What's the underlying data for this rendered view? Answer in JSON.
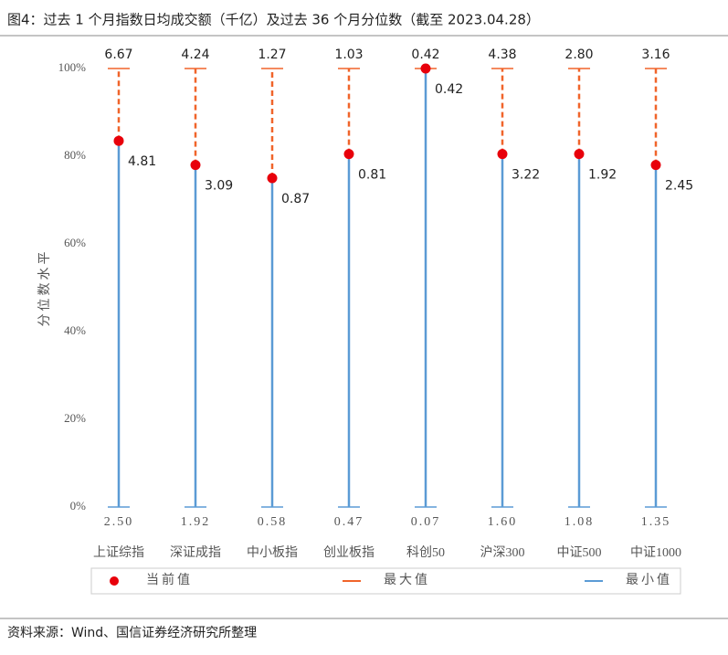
{
  "chart_data": {
    "type": "lollipop",
    "title": "图4：过去 1 个月指数日均成交额（千亿）及过去 36 个月分位数（截至 2023.04.28）",
    "y_label": "分位数水平",
    "source": "资料来源：Wind、国信证券经济研究所整理",
    "categories": [
      "上证综指",
      "深证成指",
      "中小板指",
      "创业板指",
      "科创50",
      "沪深300",
      "中证500",
      "中证1000"
    ],
    "series": [
      {
        "name": "当前值",
        "color": "#e8000b",
        "values": [
          83.5,
          78,
          75,
          80.5,
          100,
          80.5,
          80.5,
          78
        ],
        "amount_labels": [
          "4.81",
          "3.09",
          "0.87",
          "0.81",
          "0.42",
          "3.22",
          "1.92",
          "2.45"
        ]
      },
      {
        "name": "最大值",
        "color": "#f0642a",
        "values": [
          100,
          100,
          100,
          100,
          100,
          100,
          100,
          100
        ],
        "amount_labels": [
          "6.67",
          "4.24",
          "1.27",
          "1.03",
          "0.42",
          "4.38",
          "2.80",
          "3.16"
        ]
      },
      {
        "name": "最小值",
        "color": "#5b9bd5",
        "values": [
          0,
          0,
          0,
          0,
          0,
          0,
          0,
          0
        ],
        "amount_labels": [
          "2.50",
          "1.92",
          "0.58",
          "0.47",
          "0.07",
          "1.60",
          "1.08",
          "1.35"
        ]
      }
    ],
    "ylim": [
      0,
      100
    ],
    "yticks": [
      {
        "value": 0,
        "label": "0%"
      },
      {
        "value": 20,
        "label": "20%"
      },
      {
        "value": 40,
        "label": "40%"
      },
      {
        "value": 60,
        "label": "60%"
      },
      {
        "value": 80,
        "label": "80%"
      },
      {
        "value": 100,
        "label": "100%"
      }
    ]
  }
}
